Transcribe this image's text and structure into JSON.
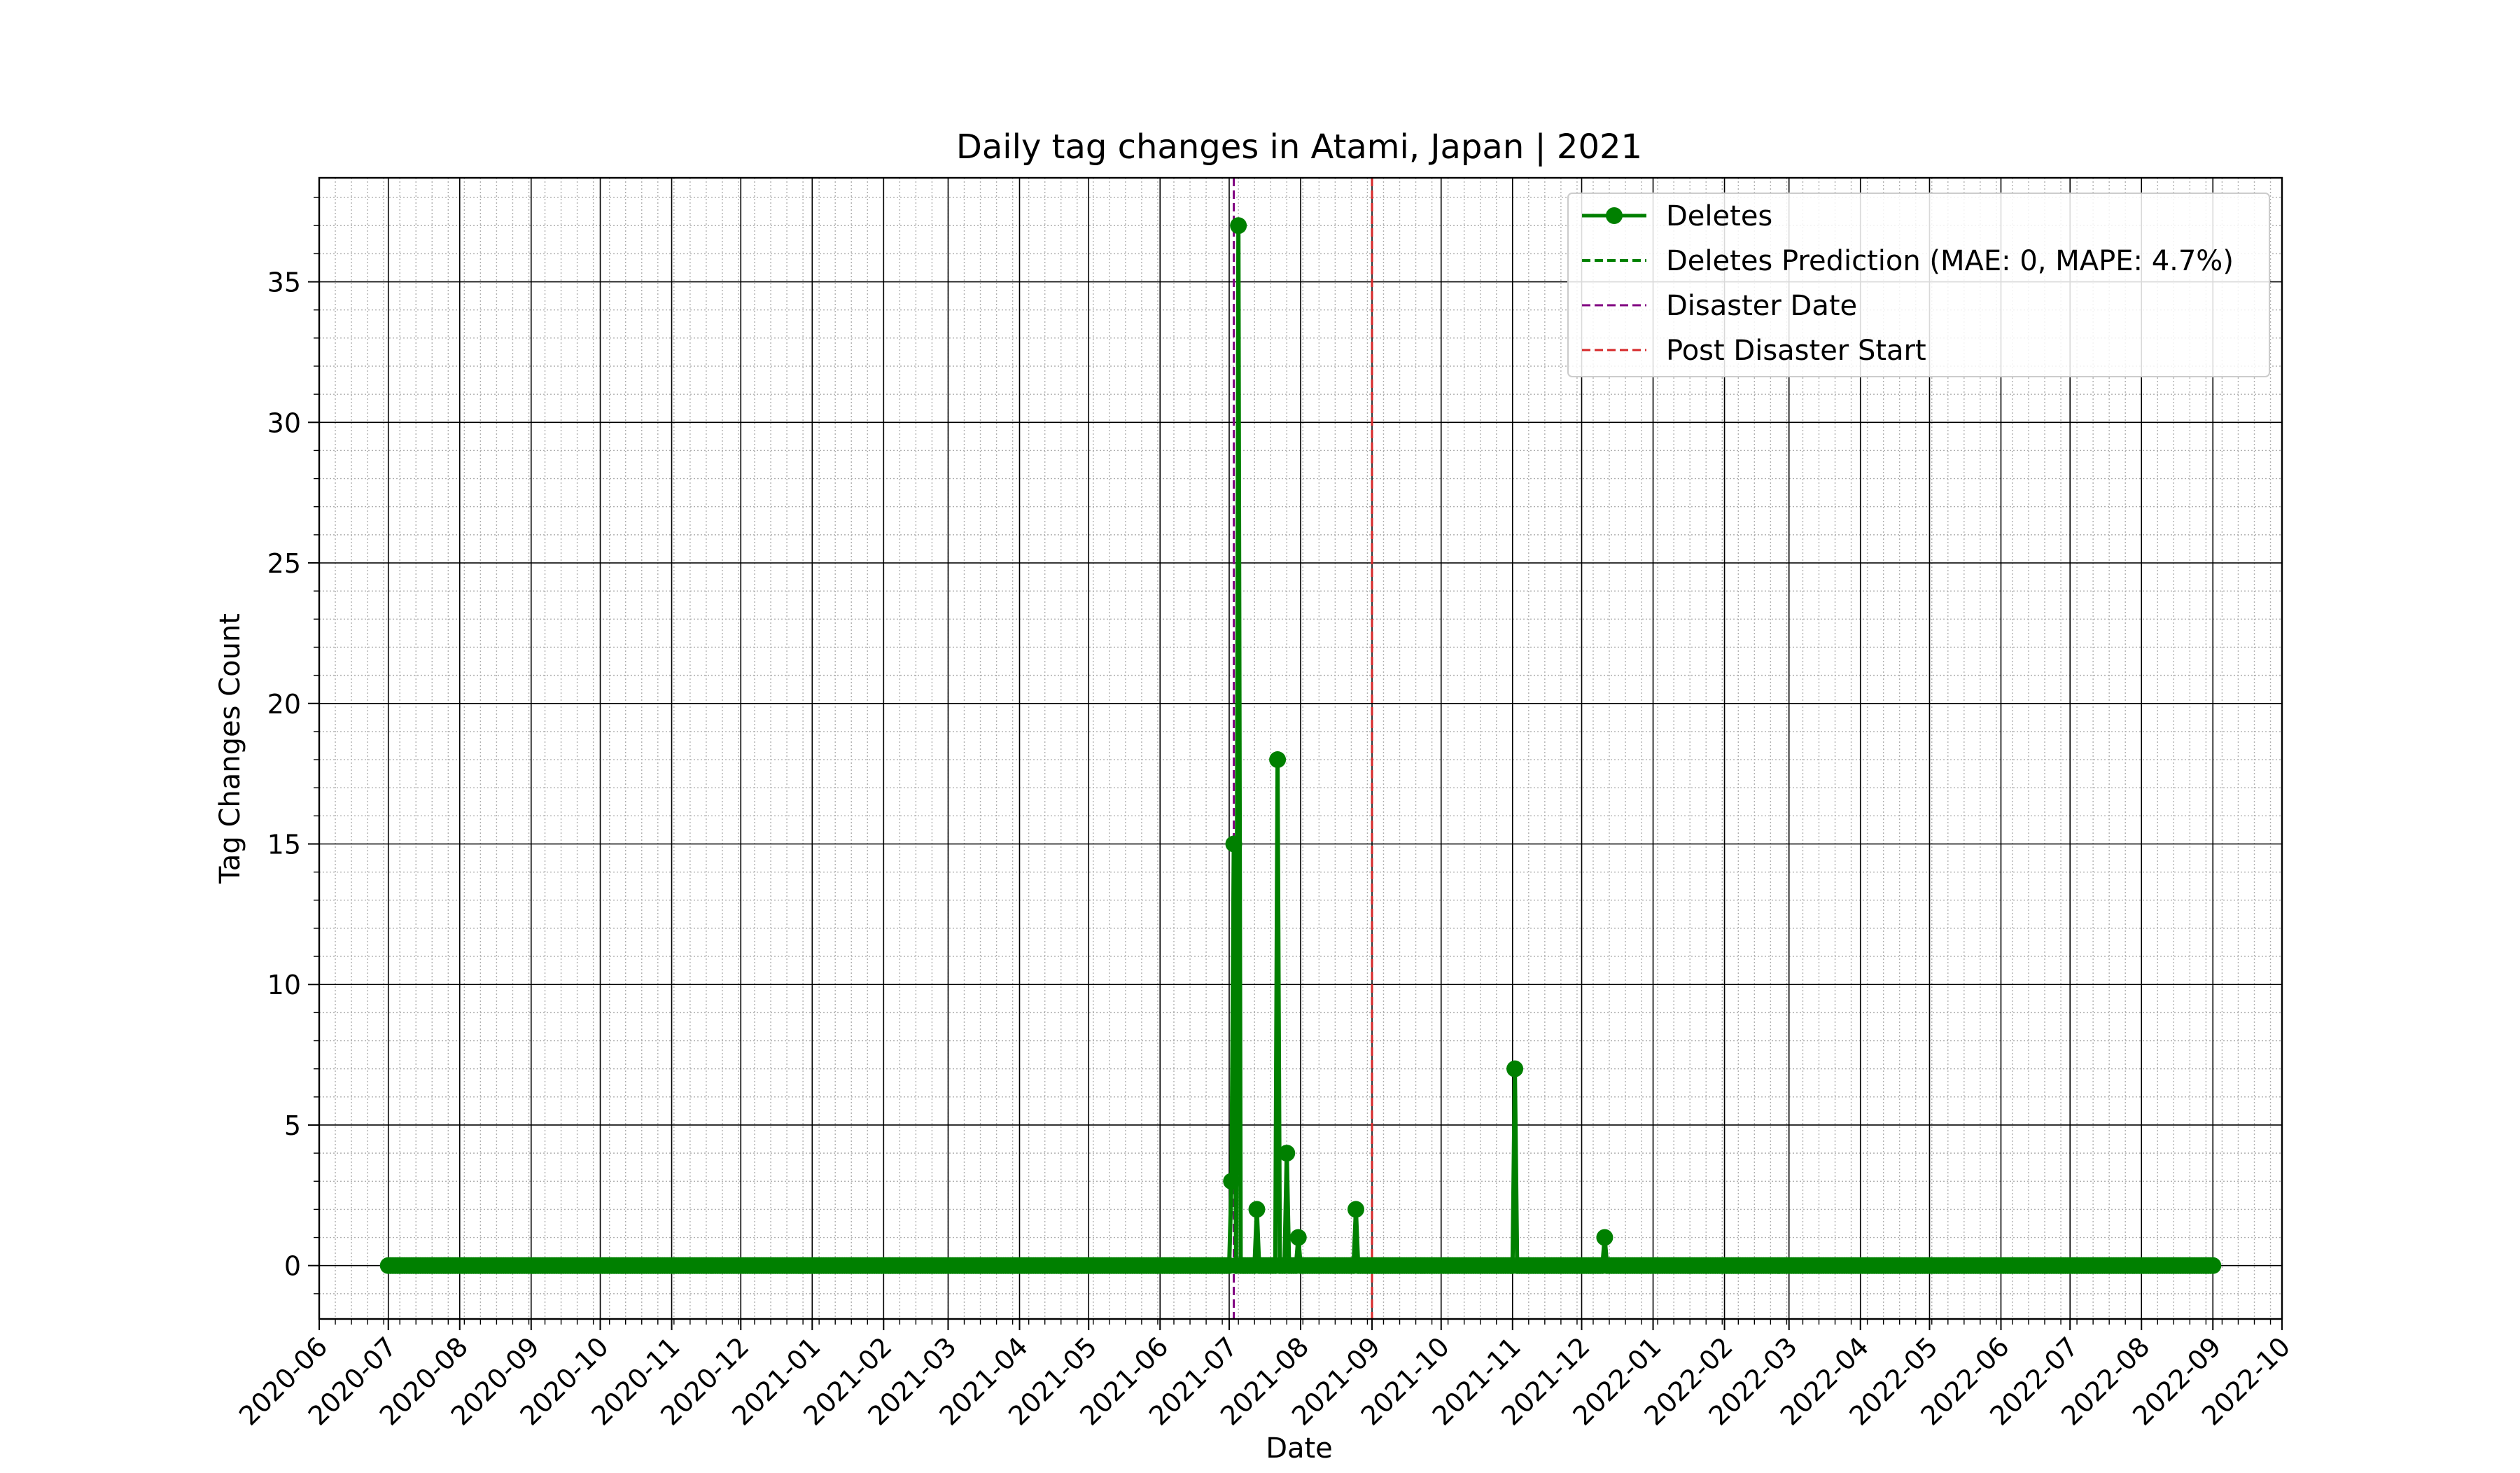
{
  "chart_data": {
    "type": "line",
    "title": "Daily tag changes in Atami, Japan | 2021",
    "xlabel": "Date",
    "ylabel": "Tag Changes Count",
    "x_range": [
      "2020-06-01",
      "2022-10-01"
    ],
    "ylim": [
      -1.9,
      38.7
    ],
    "y_ticks": [
      0,
      5,
      10,
      15,
      20,
      25,
      30,
      35
    ],
    "x_ticks": [
      "2020-06",
      "2020-07",
      "2020-08",
      "2020-09",
      "2020-10",
      "2020-11",
      "2020-12",
      "2021-01",
      "2021-02",
      "2021-03",
      "2021-04",
      "2021-05",
      "2021-06",
      "2021-07",
      "2021-08",
      "2021-09",
      "2021-10",
      "2021-11",
      "2021-12",
      "2022-01",
      "2022-02",
      "2022-03",
      "2022-04",
      "2022-05",
      "2022-06",
      "2022-07",
      "2022-08",
      "2022-09",
      "2022-10"
    ],
    "grid": true,
    "minor_grid": true,
    "legend_position": "top-right",
    "series": [
      {
        "name": "Deletes",
        "color": "#008000",
        "style": "solid-with-markers",
        "start_date": "2020-07-01",
        "end_date": "2022-09-01",
        "default_value": 0,
        "nonzero_points": [
          {
            "date": "2021-07-02",
            "value": 3
          },
          {
            "date": "2021-07-03",
            "value": 15
          },
          {
            "date": "2021-07-05",
            "value": 37
          },
          {
            "date": "2021-07-13",
            "value": 2
          },
          {
            "date": "2021-07-22",
            "value": 18
          },
          {
            "date": "2021-07-26",
            "value": 4
          },
          {
            "date": "2021-07-31",
            "value": 1
          },
          {
            "date": "2021-08-25",
            "value": 2
          },
          {
            "date": "2021-11-02",
            "value": 7
          },
          {
            "date": "2021-12-11",
            "value": 1
          }
        ]
      },
      {
        "name": "Deletes Prediction (MAE: 0, MAPE: 4.7%)",
        "color": "#008000",
        "style": "dashed",
        "start_date": "2021-09-01",
        "end_date": "2022-09-01",
        "default_value": 0
      }
    ],
    "vlines": [
      {
        "name": "Disaster Date",
        "date": "2021-07-03",
        "color": "#800080",
        "style": "dashed"
      },
      {
        "name": "Post Disaster Start",
        "date": "2021-09-01",
        "color": "#d62728",
        "style": "dashed"
      }
    ]
  }
}
